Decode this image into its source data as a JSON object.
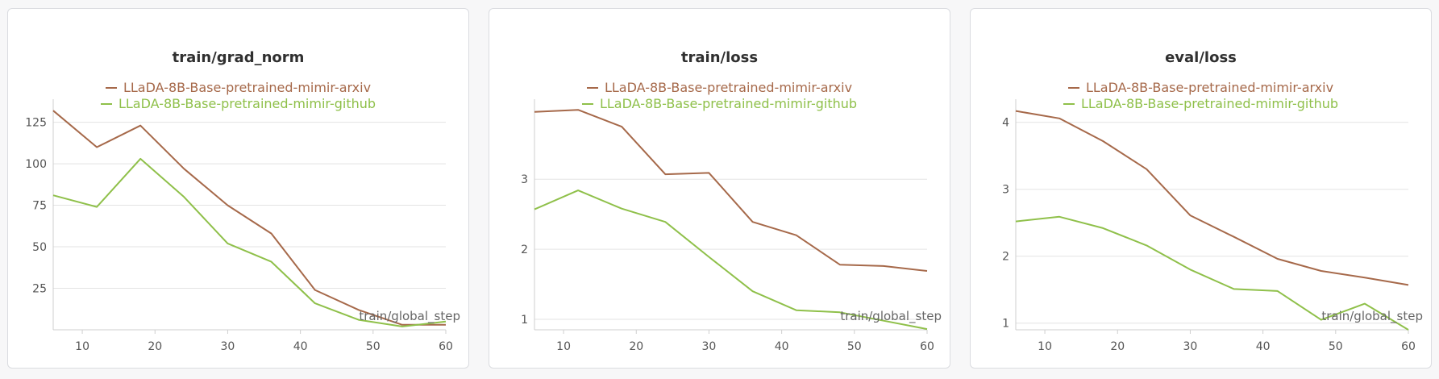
{
  "chart_data": [
    {
      "type": "line",
      "title": "train/grad_norm",
      "xlabel": "train/global_step",
      "ylabel": "",
      "xlim": [
        6,
        60
      ],
      "ylim": [
        0,
        135
      ],
      "xticks": [
        10,
        20,
        30,
        40,
        50,
        60
      ],
      "yticks": [
        25,
        50,
        75,
        100,
        125
      ],
      "grid": true,
      "legend": "top-center",
      "x": [
        6,
        12,
        18,
        24,
        30,
        36,
        42,
        48,
        54,
        60
      ],
      "series": [
        {
          "name": "LLaDA-8B-Base-pretrained-mimir-arxiv",
          "color": "#a6694a",
          "values": [
            132,
            110,
            123,
            97,
            75,
            58,
            24,
            12,
            3,
            3
          ]
        },
        {
          "name": "LLaDA-8B-Base-pretrained-mimir-github",
          "color": "#8fc04a",
          "values": [
            81,
            74,
            103,
            80,
            52,
            41,
            16,
            6,
            2,
            5
          ]
        }
      ]
    },
    {
      "type": "line",
      "title": "train/loss",
      "xlabel": "train/global_step",
      "ylabel": "",
      "xlim": [
        6,
        60
      ],
      "ylim": [
        0.85,
        4.05
      ],
      "xticks": [
        10,
        20,
        30,
        40,
        50,
        60
      ],
      "yticks": [
        1,
        2,
        3
      ],
      "grid": true,
      "legend": "top-center",
      "x": [
        6,
        12,
        18,
        24,
        30,
        36,
        42,
        48,
        54,
        60
      ],
      "series": [
        {
          "name": "LLaDA-8B-Base-pretrained-mimir-arxiv",
          "color": "#a6694a",
          "values": [
            3.96,
            3.99,
            3.75,
            3.07,
            3.09,
            2.39,
            2.2,
            1.78,
            1.76,
            1.69
          ]
        },
        {
          "name": "LLaDA-8B-Base-pretrained-mimir-github",
          "color": "#8fc04a",
          "values": [
            2.57,
            2.84,
            2.58,
            2.39,
            1.89,
            1.4,
            1.13,
            1.1,
            0.98,
            0.86
          ]
        }
      ]
    },
    {
      "type": "line",
      "title": "eval/loss",
      "xlabel": "train/global_step",
      "ylabel": "",
      "xlim": [
        6,
        60
      ],
      "ylim": [
        0.9,
        4.25
      ],
      "xticks": [
        10,
        20,
        30,
        40,
        50,
        60
      ],
      "yticks": [
        1,
        2,
        3,
        4
      ],
      "grid": true,
      "legend": "top-center",
      "x": [
        6,
        12,
        18,
        24,
        30,
        36,
        42,
        48,
        54,
        60
      ],
      "series": [
        {
          "name": "LLaDA-8B-Base-pretrained-mimir-arxiv",
          "color": "#a6694a",
          "values": [
            4.17,
            4.06,
            3.72,
            3.3,
            2.61,
            2.29,
            1.96,
            1.78,
            1.68,
            1.57
          ]
        },
        {
          "name": "LLaDA-8B-Base-pretrained-mimir-github",
          "color": "#8fc04a",
          "values": [
            2.52,
            2.59,
            2.42,
            2.16,
            1.8,
            1.51,
            1.48,
            1.05,
            1.29,
            0.9
          ]
        }
      ]
    }
  ]
}
